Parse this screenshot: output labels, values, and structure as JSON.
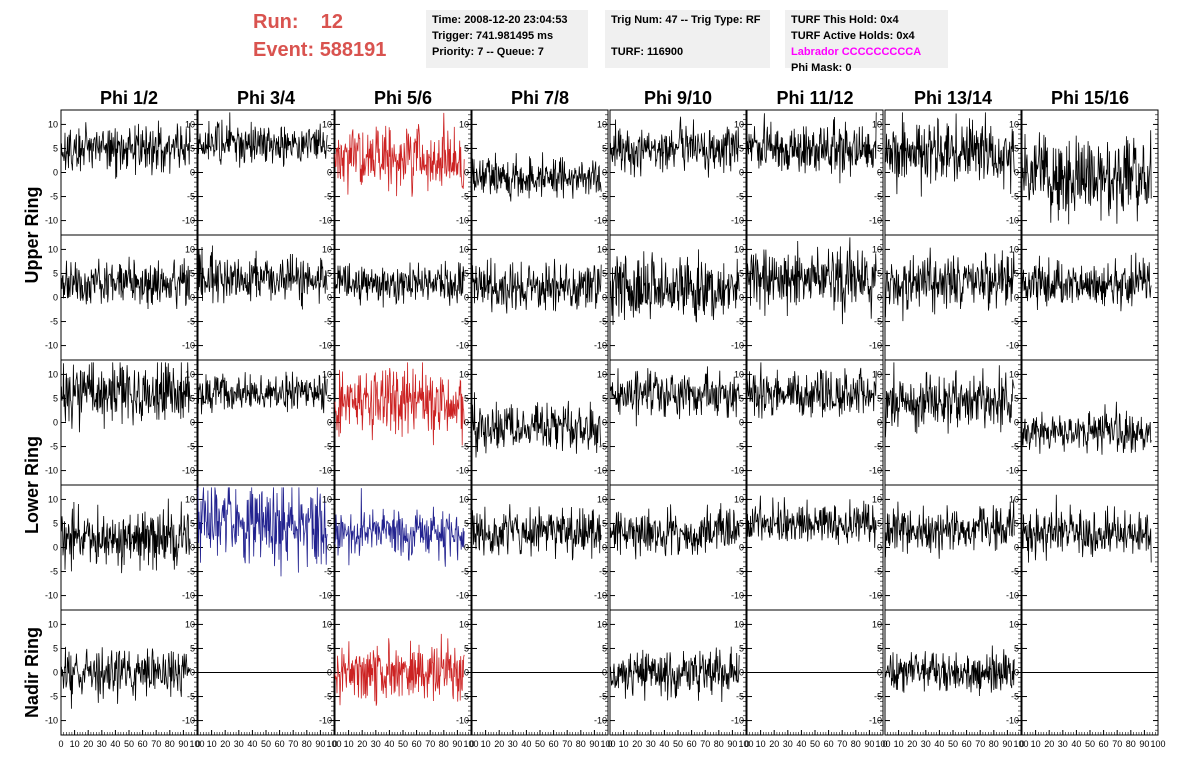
{
  "header": {
    "run_label": "Run:",
    "run_value": "12",
    "event_label": "Event:",
    "event_value": "588191"
  },
  "info_boxes": {
    "time": "Time: 2008-12-20 23:04:53",
    "trigger": "Trigger: 741.981495 ms",
    "priority": "Priority: 7 -- Queue: 7",
    "trig_num": "Trig Num: 47 -- Trig Type: RF",
    "turf": "TURF: 116900",
    "turf_this_hold": "TURF This Hold: 0x4",
    "turf_active_holds": "TURF Active Holds: 0x4",
    "labrador": "Labrador CCCCCCCCCA",
    "phi_mask": "Phi Mask: 0"
  },
  "colors": {
    "highlight": "#d9534f",
    "labrador": "#ff00ff",
    "trace": "#000000",
    "red_trace": "#cc2222",
    "blue_trace": "#22228f",
    "info_bg": "#f0f0f0"
  },
  "chart_data": {
    "type": "line",
    "columns": [
      "Phi 1/2",
      "Phi 3/4",
      "Phi 5/6",
      "Phi 7/8",
      "Phi 9/10",
      "Phi 11/12",
      "Phi 13/14",
      "Phi 15/16"
    ],
    "rows": [
      "Upper Ring",
      "Lower Ring",
      "Nadir Ring"
    ],
    "xlim": [
      0,
      100
    ],
    "ylim": [
      -13,
      13
    ],
    "x_ticks": [
      "0",
      "10",
      "20",
      "30",
      "40",
      "50",
      "60",
      "70",
      "80",
      "90",
      "100"
    ],
    "y_ticks": [
      "10",
      "5",
      "0",
      "-5",
      "-10"
    ],
    "grid": false,
    "panels": [
      {
        "row": 0,
        "col": 0,
        "mean": 5,
        "amp": 3,
        "color": "black"
      },
      {
        "row": 0,
        "col": 1,
        "mean": 6,
        "amp": 2.5,
        "color": "black"
      },
      {
        "row": 0,
        "col": 2,
        "mean": 3,
        "amp": 4,
        "color": "red"
      },
      {
        "row": 0,
        "col": 3,
        "mean": -1,
        "amp": 2.5,
        "color": "black"
      },
      {
        "row": 0,
        "col": 4,
        "mean": 5,
        "amp": 3,
        "color": "black"
      },
      {
        "row": 0,
        "col": 5,
        "mean": 5,
        "amp": 3,
        "color": "black"
      },
      {
        "row": 0,
        "col": 6,
        "mean": 4,
        "amp": 4,
        "color": "black"
      },
      {
        "row": 0,
        "col": 7,
        "mean": -1,
        "amp": 5,
        "color": "black"
      },
      {
        "row": 1,
        "col": 0,
        "mean": 3,
        "amp": 3,
        "color": "black"
      },
      {
        "row": 1,
        "col": 1,
        "mean": 4,
        "amp": 3,
        "color": "black"
      },
      {
        "row": 1,
        "col": 2,
        "mean": 3,
        "amp": 2.5,
        "color": "black"
      },
      {
        "row": 1,
        "col": 3,
        "mean": 2,
        "amp": 3,
        "color": "black"
      },
      {
        "row": 1,
        "col": 4,
        "mean": 2,
        "amp": 4,
        "color": "black"
      },
      {
        "row": 1,
        "col": 5,
        "mean": 4,
        "amp": 4,
        "color": "black"
      },
      {
        "row": 1,
        "col": 6,
        "mean": 3,
        "amp": 3.5,
        "color": "black"
      },
      {
        "row": 1,
        "col": 7,
        "mean": 3,
        "amp": 3,
        "color": "black"
      },
      {
        "row": 2,
        "col": 0,
        "mean": 6,
        "amp": 4,
        "color": "black"
      },
      {
        "row": 2,
        "col": 1,
        "mean": 6,
        "amp": 2.5,
        "color": "black"
      },
      {
        "row": 2,
        "col": 2,
        "mean": 4,
        "amp": 4.5,
        "color": "red"
      },
      {
        "row": 2,
        "col": 3,
        "mean": -1,
        "amp": 3,
        "color": "black"
      },
      {
        "row": 2,
        "col": 4,
        "mean": 6,
        "amp": 3,
        "color": "black"
      },
      {
        "row": 2,
        "col": 5,
        "mean": 6,
        "amp": 3,
        "color": "black"
      },
      {
        "row": 2,
        "col": 6,
        "mean": 4,
        "amp": 3.5,
        "color": "black"
      },
      {
        "row": 2,
        "col": 7,
        "mean": -2,
        "amp": 2.5,
        "color": "black"
      },
      {
        "row": 3,
        "col": 0,
        "mean": 2,
        "amp": 3.5,
        "color": "black"
      },
      {
        "row": 3,
        "col": 1,
        "mean": 5,
        "amp": 5,
        "color": "blue"
      },
      {
        "row": 3,
        "col": 2,
        "mean": 3,
        "amp": 3,
        "color": "blue"
      },
      {
        "row": 3,
        "col": 3,
        "mean": 3,
        "amp": 3,
        "color": "black"
      },
      {
        "row": 3,
        "col": 4,
        "mean": 3,
        "amp": 3,
        "color": "black"
      },
      {
        "row": 3,
        "col": 5,
        "mean": 5,
        "amp": 2.5,
        "color": "black"
      },
      {
        "row": 3,
        "col": 6,
        "mean": 4,
        "amp": 3,
        "color": "black"
      },
      {
        "row": 3,
        "col": 7,
        "mean": 3,
        "amp": 3,
        "color": "black"
      },
      {
        "row": 4,
        "col": 0,
        "mean": 0,
        "amp": 3,
        "color": "black"
      },
      {
        "row": 4,
        "col": 1,
        "mean": 0,
        "amp": 0,
        "color": "black"
      },
      {
        "row": 4,
        "col": 2,
        "mean": 0,
        "amp": 3.5,
        "color": "red"
      },
      {
        "row": 4,
        "col": 3,
        "mean": 0,
        "amp": 0,
        "color": "black"
      },
      {
        "row": 4,
        "col": 4,
        "mean": 0,
        "amp": 3,
        "color": "black"
      },
      {
        "row": 4,
        "col": 5,
        "mean": 0,
        "amp": 0,
        "color": "black"
      },
      {
        "row": 4,
        "col": 6,
        "mean": 0,
        "amp": 2.5,
        "color": "black"
      },
      {
        "row": 4,
        "col": 7,
        "mean": 0,
        "amp": 0,
        "color": "black"
      }
    ]
  }
}
